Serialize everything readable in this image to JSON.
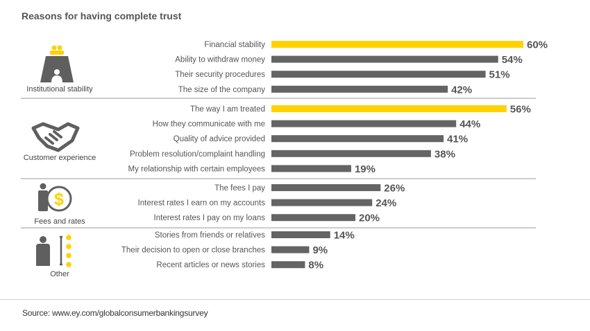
{
  "title": "Reasons for having complete trust",
  "source": "Source: www.ey.com/globalconsumerbankingsurvey",
  "colors": {
    "highlight": "#FFD200",
    "bar": "#646464",
    "icon": "#5f5f5f",
    "accent": "#FFD200"
  },
  "chart_data": {
    "type": "bar",
    "orientation": "horizontal",
    "value_suffix": "%",
    "xlim": [
      0,
      60
    ],
    "groups": [
      {
        "name": "Institutional stability",
        "icon": "meeting-table-icon",
        "items": [
          {
            "label": "Financial stability",
            "value": 60,
            "highlight": true
          },
          {
            "label": "Ability to withdraw money",
            "value": 54
          },
          {
            "label": "Their security procedures",
            "value": 51
          },
          {
            "label": "The size of the company",
            "value": 42
          }
        ]
      },
      {
        "name": "Customer experience",
        "icon": "handshake-icon",
        "items": [
          {
            "label": "The way I am treated",
            "value": 56,
            "highlight": true
          },
          {
            "label": "How they communicate with me",
            "value": 44
          },
          {
            "label": "Quality of advice provided",
            "value": 41
          },
          {
            "label": "Problem resolution/complaint handling",
            "value": 38
          },
          {
            "label": "My relationship with certain employees",
            "value": 19
          }
        ]
      },
      {
        "name": "Fees and rates",
        "icon": "person-dollar-icon",
        "items": [
          {
            "label": "The fees I pay",
            "value": 26
          },
          {
            "label": "Interest rates I earn on my accounts",
            "value": 24
          },
          {
            "label": "Interest rates I pay on my loans",
            "value": 20
          }
        ]
      },
      {
        "name": "Other",
        "icon": "person-list-icon",
        "items": [
          {
            "label": "Stories from friends or relatives",
            "value": 14
          },
          {
            "label": "Their decision to open or close branches",
            "value": 9
          },
          {
            "label": "Recent articles or news stories",
            "value": 8
          }
        ]
      }
    ]
  }
}
